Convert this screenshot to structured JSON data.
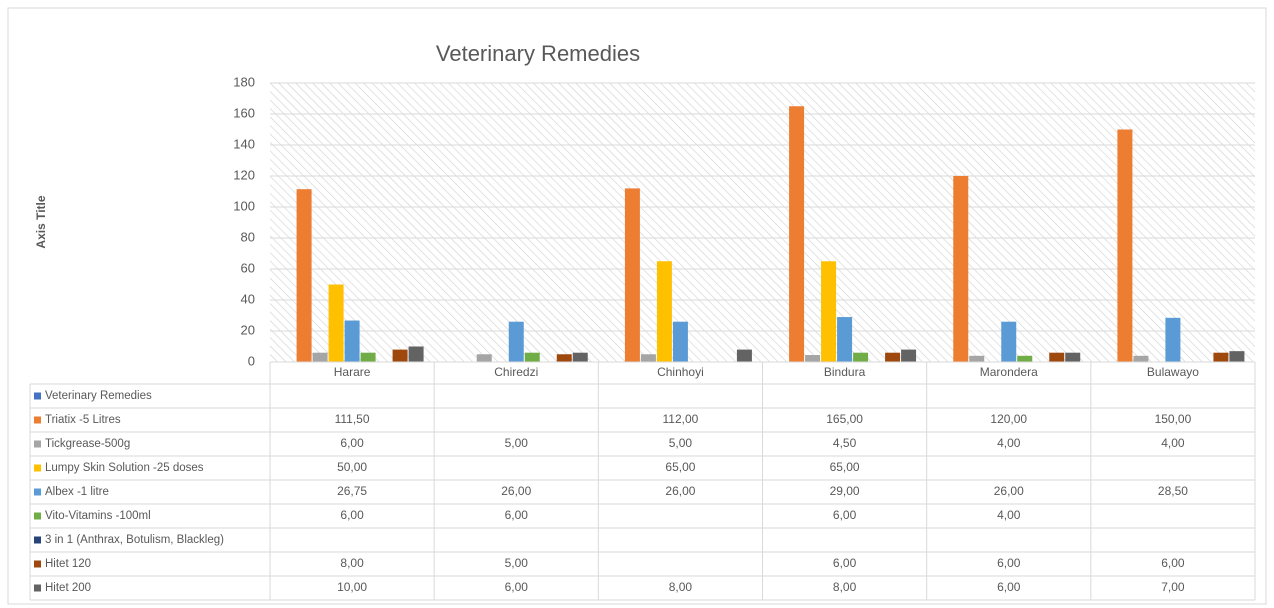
{
  "chart_data": {
    "type": "bar",
    "title": "Veterinary Remedies",
    "y_label": "Axis Title",
    "categories": [
      "Harare",
      "Chiredzi",
      "Chinhoyi",
      "Bindura",
      "Marondera",
      "Bulawayo"
    ],
    "ylim": [
      0,
      180
    ],
    "yticks": [
      0,
      20,
      40,
      60,
      80,
      100,
      120,
      140,
      160,
      180
    ],
    "grid": true,
    "series": [
      {
        "name": "Veterinary Remedies",
        "color": "#4472c4",
        "values": [
          null,
          null,
          null,
          null,
          null,
          null
        ],
        "value_labels": [
          null,
          null,
          null,
          null,
          null,
          null
        ]
      },
      {
        "name": "Triatix -5 Litres",
        "color": "#ed7d31",
        "values": [
          111.5,
          null,
          112,
          165,
          120,
          150
        ],
        "value_labels": [
          "111,50",
          null,
          "112,00",
          "165,00",
          "120,00",
          "150,00"
        ]
      },
      {
        "name": "Tickgrease-500g",
        "color": "#a5a5a5",
        "values": [
          6,
          5,
          5,
          4.5,
          4,
          4
        ],
        "value_labels": [
          "6,00",
          "5,00",
          "5,00",
          "4,50",
          "4,00",
          "4,00"
        ]
      },
      {
        "name": "Lumpy Skin Solution -25 doses",
        "color": "#ffc000",
        "values": [
          50,
          null,
          65,
          65,
          null,
          null
        ],
        "value_labels": [
          "50,00",
          null,
          "65,00",
          "65,00",
          null,
          null
        ]
      },
      {
        "name": "Albex -1 litre",
        "color": "#5b9bd5",
        "values": [
          26.75,
          26,
          26,
          29,
          26,
          28.5
        ],
        "value_labels": [
          "26,75",
          "26,00",
          "26,00",
          "29,00",
          "26,00",
          "28,50"
        ]
      },
      {
        "name": "Vito-Vitamins -100ml",
        "color": "#70ad47",
        "values": [
          6,
          6,
          null,
          6,
          4,
          null
        ],
        "value_labels": [
          "6,00",
          "6,00",
          null,
          "6,00",
          "4,00",
          null
        ]
      },
      {
        "name": "3 in 1 (Anthrax, Botulism, Blackleg)",
        "color": "#264478",
        "values": [
          null,
          null,
          null,
          null,
          null,
          null
        ],
        "value_labels": [
          null,
          null,
          null,
          null,
          null,
          null
        ]
      },
      {
        "name": "Hitet 120",
        "color": "#9e480e",
        "values": [
          8,
          5,
          null,
          6,
          6,
          6
        ],
        "value_labels": [
          "8,00",
          "5,00",
          null,
          "6,00",
          "6,00",
          "6,00"
        ]
      },
      {
        "name": "Hitet 200",
        "color": "#636363",
        "values": [
          10,
          6,
          8,
          8,
          6,
          7
        ],
        "value_labels": [
          "10,00",
          "6,00",
          "8,00",
          "8,00",
          "6,00",
          "7,00"
        ]
      }
    ]
  }
}
